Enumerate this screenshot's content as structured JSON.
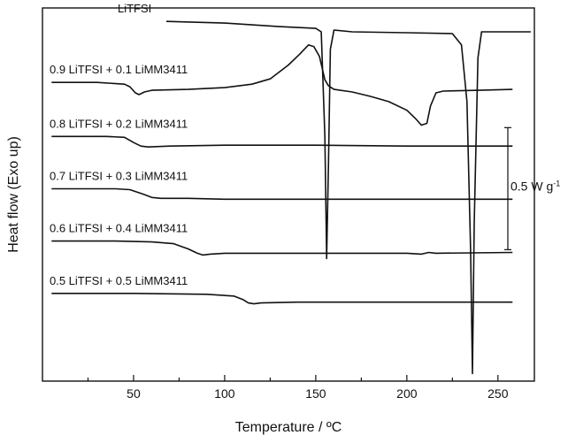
{
  "chart_data": {
    "type": "line",
    "title": "",
    "xlabel": "Temperature / ºC",
    "ylabel": "Heat flow (Exo up)",
    "xlim": [
      0,
      270
    ],
    "xticks": [
      50,
      100,
      150,
      200,
      250
    ],
    "x_minor_ticks": [
      25,
      75,
      125,
      175,
      225
    ],
    "grid": false,
    "legend": "none",
    "scale_bar": {
      "label": "0.5 W g",
      "superscript": "-1",
      "value": 0.5
    },
    "series_units": "W g^-1 (vertically offset curves)",
    "series": [
      {
        "name": "LiTFSI",
        "offset": 3.6,
        "points": [
          [
            68,
            0.12
          ],
          [
            100,
            0.1
          ],
          [
            130,
            0.06
          ],
          [
            150,
            0.04
          ],
          [
            153,
            0
          ],
          [
            155,
            -1.2
          ],
          [
            156,
            -2.6
          ],
          [
            157,
            -1.5
          ],
          [
            158,
            -0.2
          ],
          [
            160,
            0.02
          ],
          [
            170,
            0
          ],
          [
            200,
            -0.01
          ],
          [
            225,
            -0.02
          ],
          [
            230,
            -0.15
          ],
          [
            233,
            -0.8
          ],
          [
            235,
            -2.5
          ],
          [
            236,
            -3.92
          ],
          [
            237,
            -2.2
          ],
          [
            239,
            -0.3
          ],
          [
            241,
            0
          ],
          [
            255,
            0
          ],
          [
            268,
            0
          ]
        ]
      },
      {
        "name": "0.9 LiTFSI + 0.1 LiMM3411",
        "offset": 3.0,
        "points": [
          [
            5,
            0.02
          ],
          [
            30,
            0.02
          ],
          [
            45,
            0
          ],
          [
            48,
            -0.03
          ],
          [
            51,
            -0.1
          ],
          [
            53,
            -0.12
          ],
          [
            56,
            -0.09
          ],
          [
            60,
            -0.07
          ],
          [
            80,
            -0.06
          ],
          [
            100,
            -0.04
          ],
          [
            115,
            0
          ],
          [
            125,
            0.06
          ],
          [
            135,
            0.22
          ],
          [
            141,
            0.34
          ],
          [
            146,
            0.45
          ],
          [
            149,
            0.43
          ],
          [
            152,
            0.32
          ],
          [
            155,
            0.05
          ],
          [
            157,
            -0.02
          ],
          [
            160,
            -0.06
          ],
          [
            170,
            -0.09
          ],
          [
            180,
            -0.14
          ],
          [
            190,
            -0.2
          ],
          [
            200,
            -0.3
          ],
          [
            205,
            -0.4
          ],
          [
            208,
            -0.47
          ],
          [
            211,
            -0.45
          ],
          [
            213,
            -0.25
          ],
          [
            216,
            -0.1
          ],
          [
            220,
            -0.08
          ],
          [
            240,
            -0.07
          ],
          [
            258,
            -0.06
          ]
        ]
      },
      {
        "name": "0.8 LiTFSI + 0.2 LiMM3411",
        "offset": 2.4,
        "points": [
          [
            5,
            0
          ],
          [
            35,
            0
          ],
          [
            45,
            -0.01
          ],
          [
            50,
            -0.07
          ],
          [
            54,
            -0.11
          ],
          [
            58,
            -0.12
          ],
          [
            70,
            -0.11
          ],
          [
            100,
            -0.1
          ],
          [
            150,
            -0.1
          ],
          [
            200,
            -0.11
          ],
          [
            258,
            -0.11
          ]
        ]
      },
      {
        "name": "0.7 LiTFSI + 0.3 LiMM3411",
        "offset": 1.8,
        "points": [
          [
            5,
            0
          ],
          [
            40,
            0
          ],
          [
            48,
            -0.01
          ],
          [
            55,
            -0.06
          ],
          [
            60,
            -0.1
          ],
          [
            65,
            -0.11
          ],
          [
            80,
            -0.11
          ],
          [
            100,
            -0.12
          ],
          [
            150,
            -0.12
          ],
          [
            200,
            -0.12
          ],
          [
            258,
            -0.12
          ]
        ]
      },
      {
        "name": "0.6 LiTFSI + 0.4 LiMM3411",
        "offset": 1.2,
        "points": [
          [
            5,
            0
          ],
          [
            40,
            0
          ],
          [
            60,
            -0.01
          ],
          [
            72,
            -0.03
          ],
          [
            80,
            -0.09
          ],
          [
            85,
            -0.14
          ],
          [
            88,
            -0.16
          ],
          [
            92,
            -0.15
          ],
          [
            100,
            -0.14
          ],
          [
            150,
            -0.14
          ],
          [
            200,
            -0.14
          ],
          [
            208,
            -0.15
          ],
          [
            212,
            -0.13
          ],
          [
            216,
            -0.14
          ],
          [
            258,
            -0.13
          ]
        ]
      },
      {
        "name": "0.5 LiTFSI + 0.5 LiMM3411",
        "offset": 0.6,
        "points": [
          [
            5,
            0
          ],
          [
            50,
            0
          ],
          [
            90,
            -0.01
          ],
          [
            105,
            -0.03
          ],
          [
            110,
            -0.07
          ],
          [
            113,
            -0.11
          ],
          [
            116,
            -0.12
          ],
          [
            120,
            -0.11
          ],
          [
            140,
            -0.1
          ],
          [
            200,
            -0.1
          ],
          [
            230,
            -0.1
          ],
          [
            258,
            -0.1
          ]
        ]
      }
    ]
  }
}
